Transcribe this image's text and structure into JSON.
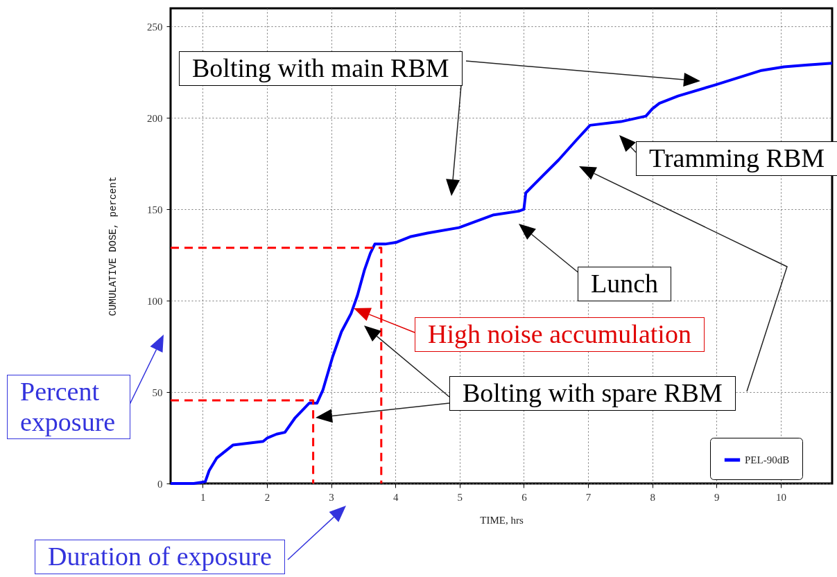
{
  "chart_data": {
    "type": "line",
    "xlabel": "TIME, hrs",
    "ylabel": "CUMULATIVE DOSE, percent",
    "xlim": [
      0.5,
      10.8
    ],
    "ylim": [
      0,
      260
    ],
    "xticks": [
      1,
      2,
      3,
      4,
      5,
      6,
      7,
      8,
      9,
      10
    ],
    "yticks": [
      0,
      50,
      100,
      150,
      200,
      250
    ],
    "grid": true,
    "legend": "bottom right",
    "marker": "none",
    "line_style": "solid",
    "series": [
      {
        "name": "PEL-90dB",
        "color": "#0000ff",
        "x": [
          0.5,
          0.86,
          1.04,
          1.1,
          1.22,
          1.47,
          1.94,
          2.01,
          2.15,
          2.28,
          2.44,
          2.66,
          2.78,
          2.87,
          3.02,
          3.16,
          3.31,
          3.41,
          3.52,
          3.61,
          3.68,
          3.84,
          4.02,
          4.23,
          4.5,
          4.99,
          5.53,
          5.92,
          6.0,
          6.03,
          6.17,
          6.54,
          6.82,
          7.03,
          7.51,
          7.9,
          8.0,
          8.11,
          8.4,
          8.97,
          9.7,
          10.05,
          10.42,
          10.8
        ],
        "values": [
          0,
          0,
          1,
          7,
          14,
          21,
          23,
          25,
          27,
          28,
          36,
          44,
          44,
          51,
          69,
          83,
          93,
          103,
          117,
          126,
          131,
          131,
          132,
          135,
          137,
          140,
          147,
          149,
          150,
          159,
          164,
          177,
          188,
          196,
          198,
          201,
          205,
          208,
          212,
          218,
          226,
          228,
          229,
          230
        ]
      },
      {
        "color": "#ff0000",
        "line_style": "dashed",
        "x": [
          0.5,
          3.78,
          3.78
        ],
        "values": [
          129,
          129,
          0
        ]
      },
      {
        "color": "#ff0000",
        "line_style": "dashed",
        "x": [
          0.5,
          2.72,
          2.72
        ],
        "values": [
          45.5,
          45.5,
          0
        ]
      }
    ],
    "annotations": [
      "Bolting with main RBM",
      "Tramming RBM",
      "Lunch",
      "High noise accumulation",
      "Bolting with spare RBM",
      "Percent exposure",
      "Duration of exposure"
    ]
  }
}
